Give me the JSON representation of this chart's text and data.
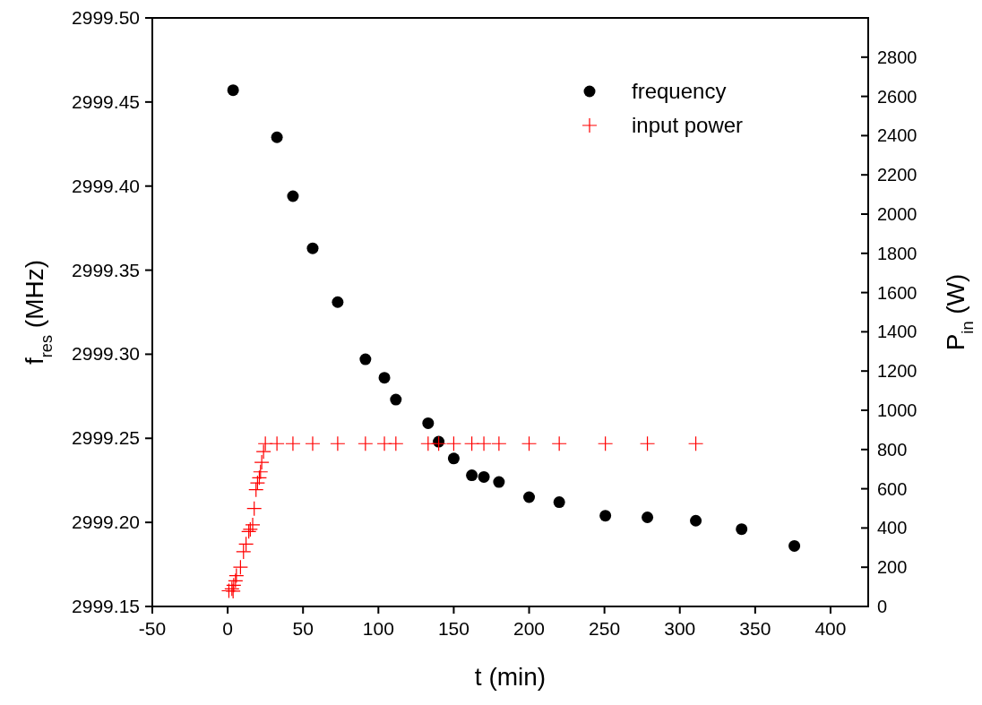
{
  "chart_data": {
    "type": "scatter",
    "xlabel": "t (min)",
    "ylabel": "f$_{res}$ (MHz)",
    "y2label": "P$_{in}$ (W)",
    "xlim": [
      -50,
      425
    ],
    "xticks": [
      -50,
      0,
      50,
      100,
      150,
      200,
      250,
      300,
      350,
      400
    ],
    "ylim": [
      2999.15,
      2999.5
    ],
    "yticks": [
      {
        "value": 2999.15,
        "label": "2999.15"
      },
      {
        "value": 2999.2,
        "label": "2999.20"
      },
      {
        "value": 2999.25,
        "label": "2999.25"
      },
      {
        "value": 2999.3,
        "label": "2999.30"
      },
      {
        "value": 2999.35,
        "label": "2999.35"
      },
      {
        "value": 2999.4,
        "label": "2999.40"
      },
      {
        "value": 2999.45,
        "label": "2999.45"
      },
      {
        "value": 2999.5,
        "label": "2999.50"
      }
    ],
    "y2lim": [
      0,
      3000
    ],
    "y2ticks": [
      0,
      200,
      400,
      600,
      800,
      1000,
      1200,
      1400,
      1600,
      1800,
      2000,
      2200,
      2400,
      2600,
      2800
    ],
    "legend": "top right",
    "grid": false,
    "series": [
      {
        "name": "frequency",
        "color": "#000000",
        "marker": "circle",
        "x": [
          3.6,
          32.7,
          43.3,
          56.4,
          73,
          91.4,
          104,
          111.6,
          133,
          140,
          150,
          162,
          170,
          180,
          200,
          220,
          250.6,
          278.5,
          310.6,
          341,
          376
        ],
        "values": [
          2999.457,
          2999.429,
          2999.394,
          2999.363,
          2999.331,
          2999.297,
          2999.286,
          2999.273,
          2999.259,
          2999.248,
          2999.238,
          2999.228,
          2999.227,
          2999.224,
          2999.215,
          2999.212,
          2999.204,
          2999.203,
          2999.201,
          2999.196,
          2999.186
        ]
      },
      {
        "name": "input power",
        "color": "#ff0000",
        "marker": "cross",
        "axis": "y2",
        "x": [
          0.8,
          3.6,
          2.8,
          4,
          5.2,
          5.8,
          8.5,
          10.5,
          12.2,
          14,
          15,
          16.6,
          17.6,
          18.8,
          19.8,
          21,
          21.8,
          22.6,
          23.8,
          25,
          32.7,
          43.3,
          56.4,
          73,
          91.4,
          104,
          111.6,
          133,
          140,
          150,
          162,
          170,
          180,
          200,
          220,
          250.6,
          278.5,
          310.6
        ],
        "values": [
          80,
          78,
          90,
          108,
          131,
          157,
          200,
          279,
          318,
          382,
          393,
          416,
          499,
          595,
          630,
          656,
          686,
          735,
          789,
          830,
          830,
          830,
          830,
          830,
          830,
          830,
          830,
          830,
          830,
          830,
          830,
          830,
          830,
          830,
          830,
          830,
          830,
          830
        ]
      }
    ]
  }
}
